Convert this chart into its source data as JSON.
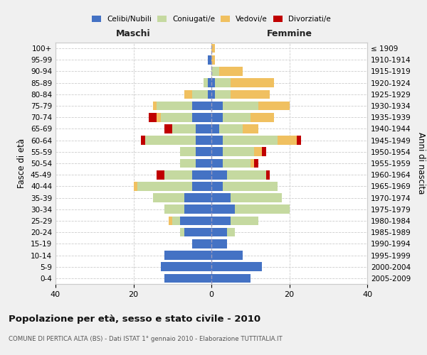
{
  "age_groups": [
    "0-4",
    "5-9",
    "10-14",
    "15-19",
    "20-24",
    "25-29",
    "30-34",
    "35-39",
    "40-44",
    "45-49",
    "50-54",
    "55-59",
    "60-64",
    "65-69",
    "70-74",
    "75-79",
    "80-84",
    "85-89",
    "90-94",
    "95-99",
    "100+"
  ],
  "birth_years": [
    "2005-2009",
    "2000-2004",
    "1995-1999",
    "1990-1994",
    "1985-1989",
    "1980-1984",
    "1975-1979",
    "1970-1974",
    "1965-1969",
    "1960-1964",
    "1955-1959",
    "1950-1954",
    "1945-1949",
    "1940-1944",
    "1935-1939",
    "1930-1934",
    "1925-1929",
    "1920-1924",
    "1915-1919",
    "1910-1914",
    "≤ 1909"
  ],
  "maschi": {
    "celibi": [
      12,
      13,
      12,
      5,
      7,
      8,
      7,
      7,
      5,
      5,
      4,
      4,
      4,
      4,
      5,
      5,
      1,
      1,
      0,
      1,
      0
    ],
    "coniugati": [
      0,
      0,
      0,
      0,
      1,
      2,
      5,
      8,
      14,
      7,
      4,
      4,
      13,
      6,
      8,
      9,
      4,
      1,
      0,
      0,
      0
    ],
    "vedovi": [
      0,
      0,
      0,
      0,
      0,
      1,
      0,
      0,
      1,
      0,
      0,
      0,
      0,
      0,
      1,
      1,
      2,
      0,
      0,
      0,
      0
    ],
    "divorziati": [
      0,
      0,
      0,
      0,
      0,
      0,
      0,
      0,
      0,
      2,
      0,
      0,
      1,
      2,
      2,
      0,
      0,
      0,
      0,
      0,
      0
    ]
  },
  "femmine": {
    "nubili": [
      10,
      13,
      8,
      4,
      4,
      5,
      6,
      5,
      3,
      4,
      3,
      3,
      3,
      2,
      3,
      3,
      1,
      1,
      0,
      0,
      0
    ],
    "coniugate": [
      0,
      0,
      0,
      0,
      2,
      7,
      14,
      13,
      14,
      10,
      7,
      8,
      14,
      6,
      7,
      9,
      4,
      4,
      2,
      0,
      0
    ],
    "vedove": [
      0,
      0,
      0,
      0,
      0,
      0,
      0,
      0,
      0,
      0,
      1,
      2,
      5,
      4,
      6,
      8,
      10,
      11,
      6,
      1,
      1
    ],
    "divorziate": [
      0,
      0,
      0,
      0,
      0,
      0,
      0,
      0,
      0,
      1,
      1,
      1,
      1,
      0,
      0,
      0,
      0,
      0,
      0,
      0,
      0
    ]
  },
  "colors": {
    "celibi_nubili": "#4472c4",
    "coniugati_e": "#c5d9a0",
    "vedovi_e": "#f0c060",
    "divorziati_e": "#c00000"
  },
  "title": "Popolazione per età, sesso e stato civile - 2010",
  "subtitle": "COMUNE DI PERTICA ALTA (BS) - Dati ISTAT 1° gennaio 2010 - Elaborazione TUTTITALIA.IT",
  "xlabel_left": "Maschi",
  "xlabel_right": "Femmine",
  "ylabel_left": "Fasce di età",
  "ylabel_right": "Anni di nascita",
  "xlim": 40,
  "bg_color": "#f0f0f0",
  "plot_bg_color": "#ffffff",
  "grid_color": "#cccccc"
}
